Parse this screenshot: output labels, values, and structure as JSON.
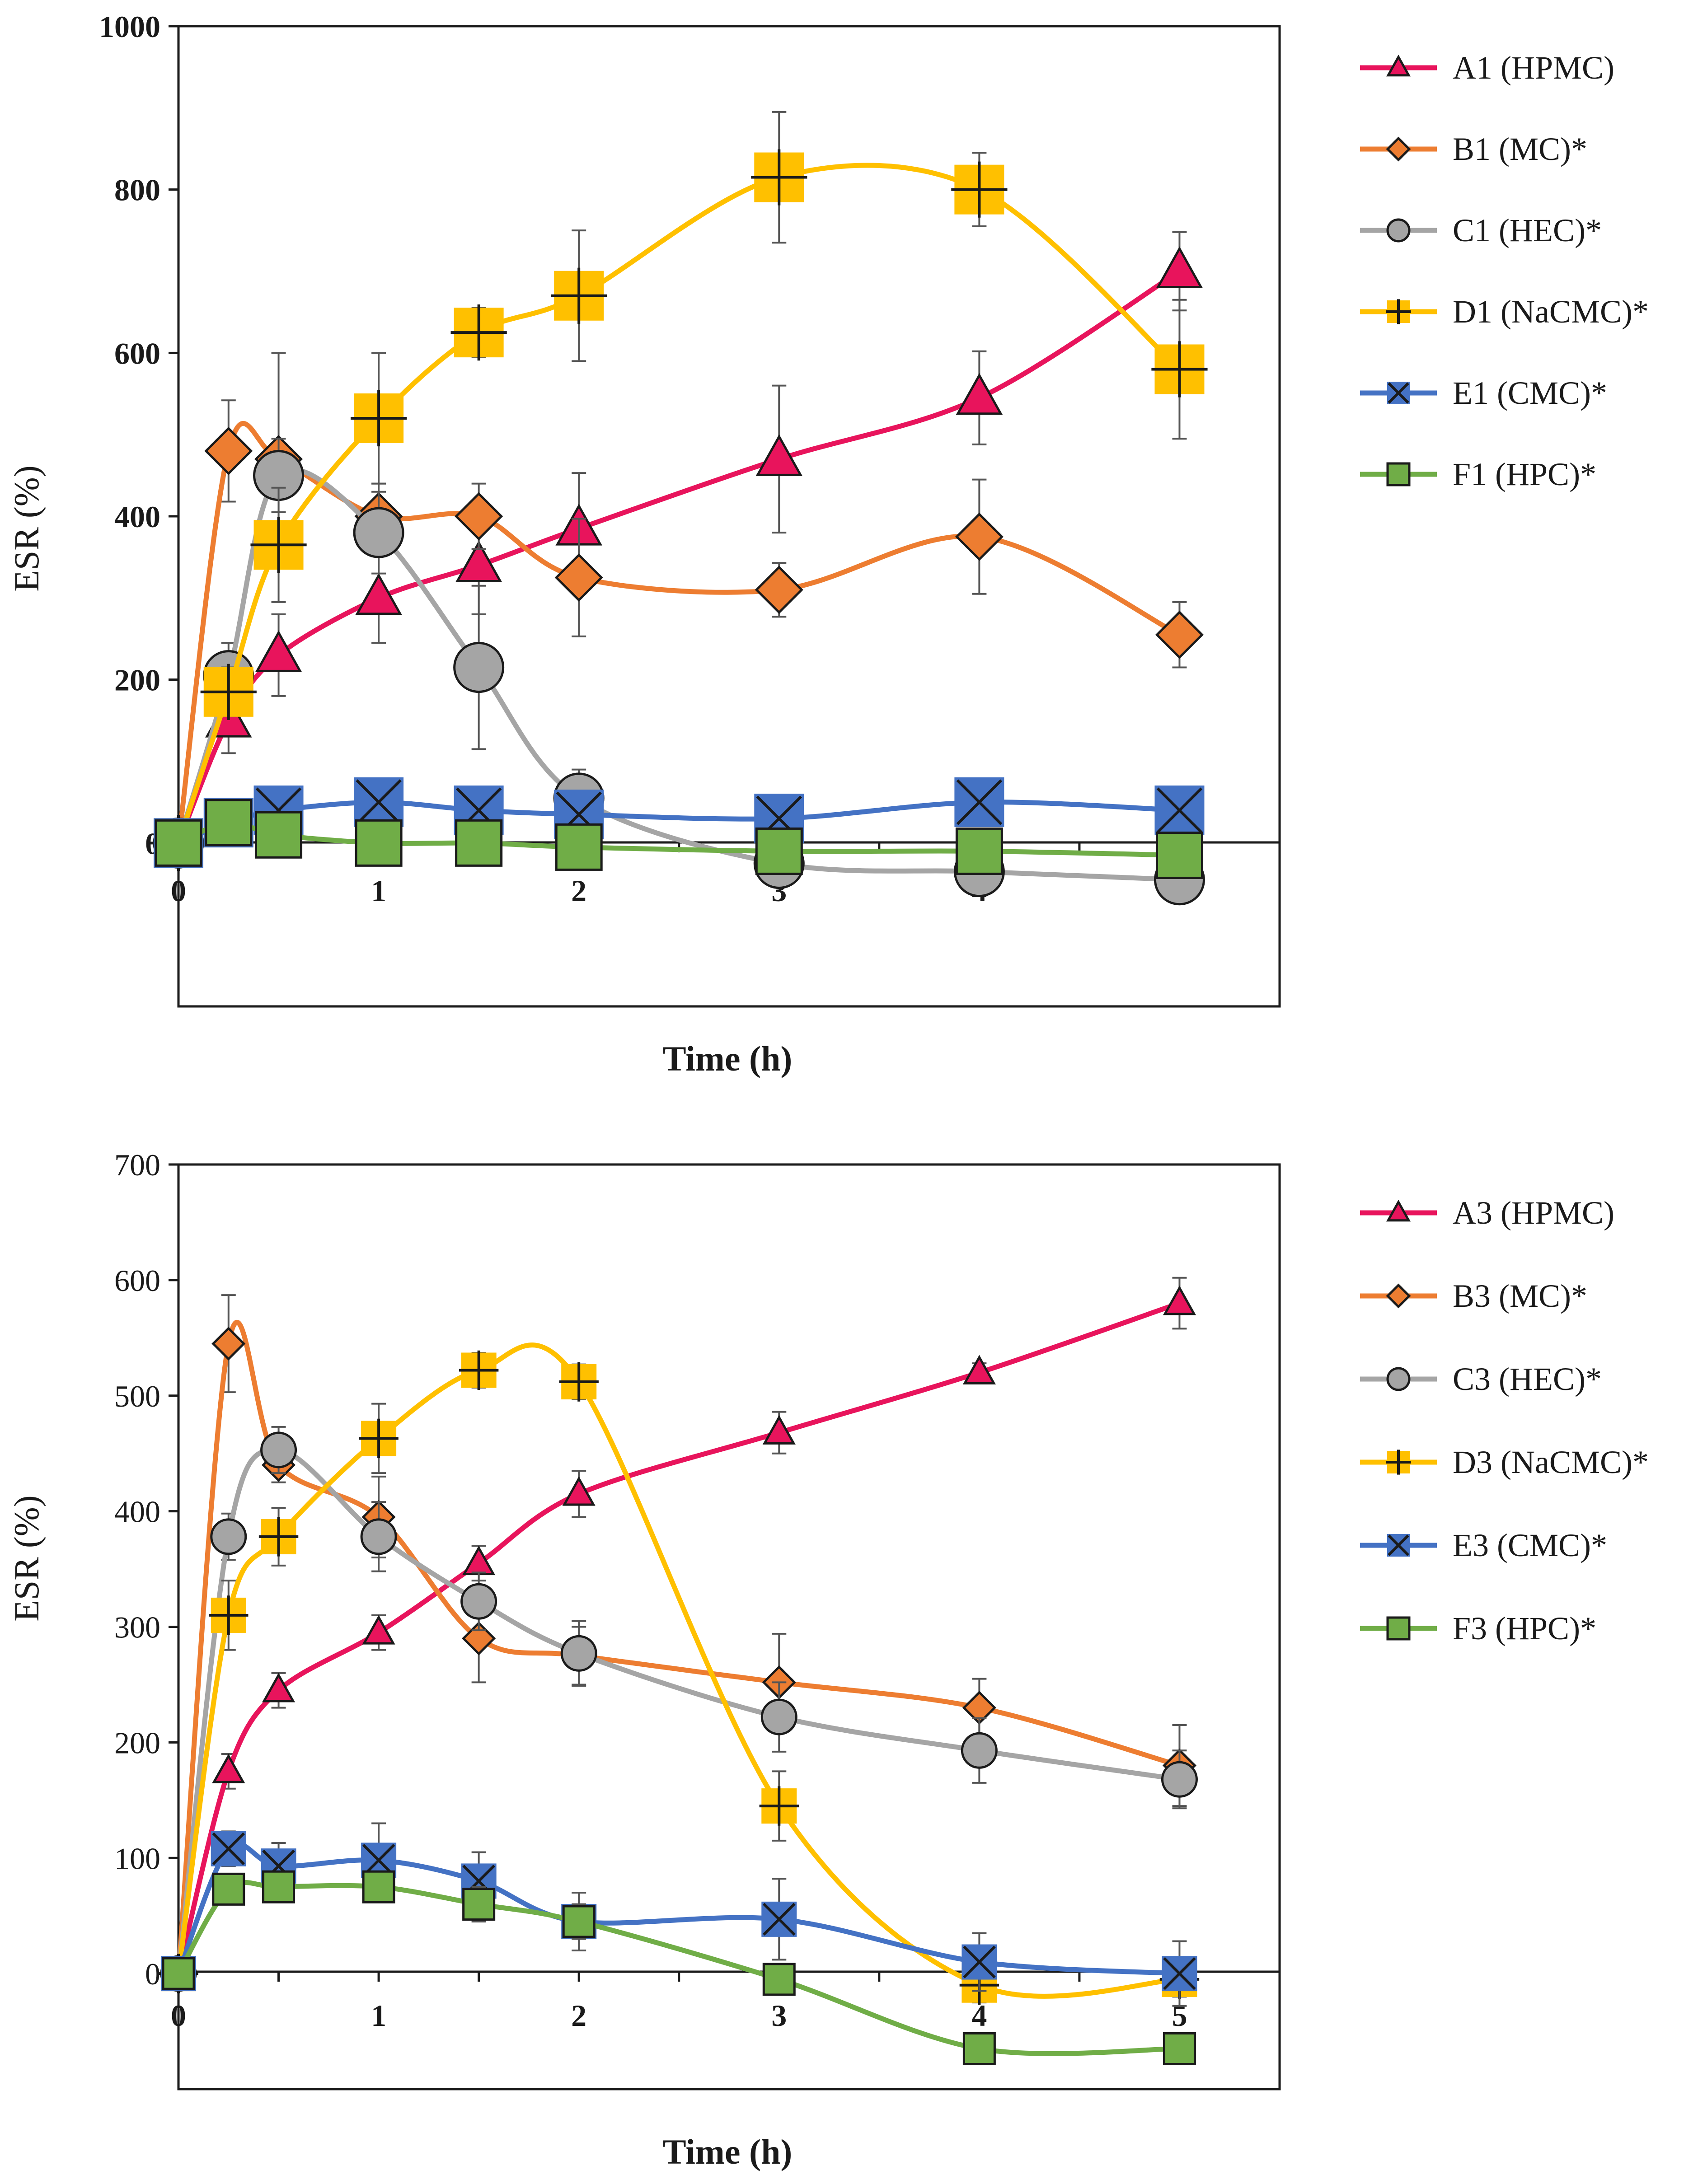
{
  "chart_data": [
    {
      "type": "line",
      "xlabel": "Time (h)",
      "ylabel": "ESR (%)",
      "ylim": [
        -200,
        1000
      ],
      "yticks": [
        0,
        200,
        400,
        600,
        800,
        1000
      ],
      "xticks": [
        0,
        1,
        2,
        3,
        4,
        5
      ],
      "x_tick_labels": [
        "0",
        "1",
        "2",
        "3",
        "4",
        "5"
      ],
      "y_tick_labels": [
        "0",
        "200",
        "400",
        "600",
        "800",
        "1000"
      ],
      "legend_position": "right",
      "series": [
        {
          "name": "A1 (HPMC)",
          "color": "#e8145c",
          "marker": "triangle",
          "x": [
            0,
            0.25,
            0.5,
            1,
            1.5,
            2,
            3,
            4,
            5
          ],
          "y": [
            0,
            150,
            230,
            300,
            340,
            385,
            470,
            545,
            700
          ],
          "err": [
            0,
            40,
            50,
            55,
            60,
            68,
            90,
            57,
            48
          ]
        },
        {
          "name": "B1 (MC)*",
          "color": "#ed7d31",
          "marker": "diamond",
          "x": [
            0,
            0.25,
            0.5,
            1,
            1.5,
            2,
            3,
            4,
            5
          ],
          "y": [
            0,
            480,
            470,
            400,
            400,
            325,
            310,
            375,
            255
          ],
          "err": [
            0,
            62,
            130,
            40,
            40,
            72,
            33,
            70,
            40
          ]
        },
        {
          "name": "C1 (HEC)*",
          "color": "#a5a5a5",
          "marker": "circle",
          "x": [
            0,
            0.25,
            0.5,
            1,
            1.5,
            2,
            3,
            4,
            5
          ],
          "y": [
            0,
            205,
            450,
            380,
            215,
            55,
            -25,
            -35,
            -45
          ],
          "err": [
            0,
            40,
            45,
            50,
            100,
            35,
            10,
            10,
            10
          ]
        },
        {
          "name": "D1 (NaCMC)*",
          "color": "#ffc000",
          "marker": "cross-square",
          "x": [
            0,
            0.25,
            0.5,
            1,
            1.5,
            2,
            3,
            4,
            5
          ],
          "y": [
            0,
            185,
            365,
            520,
            625,
            670,
            815,
            800,
            580
          ],
          "err": [
            0,
            30,
            70,
            80,
            30,
            80,
            80,
            45,
            85
          ]
        },
        {
          "name": "E1 (CMC)*",
          "color": "#4472c4",
          "marker": "x-square",
          "x": [
            0,
            0.25,
            0.5,
            1,
            1.5,
            2,
            3,
            4,
            5
          ],
          "y": [
            0,
            25,
            40,
            50,
            40,
            35,
            30,
            50,
            40
          ],
          "err": [
            0,
            10,
            15,
            15,
            15,
            15,
            12,
            12,
            12
          ]
        },
        {
          "name": "F1 (HPC)*",
          "color": "#70ad47",
          "marker": "square",
          "x": [
            0,
            0.25,
            0.5,
            1,
            1.5,
            2,
            3,
            4,
            5
          ],
          "y": [
            0,
            25,
            10,
            0,
            0,
            -5,
            -10,
            -10,
            -15
          ],
          "err": [
            0,
            8,
            8,
            8,
            8,
            8,
            8,
            8,
            8
          ]
        }
      ]
    },
    {
      "type": "line",
      "xlabel": "Time (h)",
      "ylabel": "ESR (%)",
      "ylim": [
        -100,
        700
      ],
      "yticks": [
        0,
        100,
        200,
        300,
        400,
        500,
        600,
        700
      ],
      "xticks": [
        0,
        1,
        2,
        3,
        4,
        5
      ],
      "x_tick_labels": [
        "0",
        "1",
        "2",
        "3",
        "4",
        "5"
      ],
      "y_tick_labels": [
        "0",
        "100",
        "200",
        "300",
        "400",
        "500",
        "600",
        "700"
      ],
      "legend_position": "right",
      "series": [
        {
          "name": "A3 (HPMC)",
          "color": "#e8145c",
          "marker": "triangle",
          "x": [
            0,
            0.25,
            0.5,
            1,
            1.5,
            2,
            3,
            4,
            5
          ],
          "y": [
            0,
            175,
            245,
            295,
            355,
            415,
            468,
            520,
            580
          ],
          "err": [
            0,
            15,
            15,
            15,
            15,
            20,
            18,
            8,
            22
          ]
        },
        {
          "name": "B3 (MC)*",
          "color": "#ed7d31",
          "marker": "diamond",
          "x": [
            0,
            0.25,
            0.5,
            1,
            1.5,
            2,
            3,
            4,
            5
          ],
          "y": [
            0,
            545,
            440,
            395,
            290,
            275,
            252,
            230,
            180
          ],
          "err": [
            0,
            42,
            15,
            35,
            38,
            25,
            42,
            25,
            35
          ]
        },
        {
          "name": "C3 (HEC)*",
          "color": "#a5a5a5",
          "marker": "circle",
          "x": [
            0,
            0.25,
            0.5,
            1,
            1.5,
            2,
            3,
            4,
            5
          ],
          "y": [
            0,
            378,
            453,
            378,
            322,
            277,
            222,
            193,
            168
          ],
          "err": [
            0,
            20,
            20,
            30,
            25,
            28,
            30,
            28,
            25
          ]
        },
        {
          "name": "D3 (NaCMC)*",
          "color": "#ffc000",
          "marker": "cross-square",
          "x": [
            0,
            0.25,
            0.5,
            1,
            1.5,
            2,
            3,
            4,
            5
          ],
          "y": [
            0,
            310,
            378,
            463,
            522,
            512,
            145,
            -10,
            -5
          ],
          "err": [
            0,
            30,
            25,
            30,
            15,
            15,
            30,
            15,
            15
          ]
        },
        {
          "name": "E3 (CMC)*",
          "color": "#4472c4",
          "marker": "x-square",
          "x": [
            0,
            0.25,
            0.5,
            1,
            1.5,
            2,
            3,
            4,
            5
          ],
          "y": [
            0,
            108,
            93,
            98,
            80,
            45,
            47,
            10,
            0
          ],
          "err": [
            0,
            15,
            20,
            32,
            25,
            25,
            35,
            25,
            28
          ]
        },
        {
          "name": "F3 (HPC)*",
          "color": "#70ad47",
          "marker": "square",
          "x": [
            0,
            0.25,
            0.5,
            1,
            1.5,
            2,
            3,
            4,
            5
          ],
          "y": [
            0,
            73,
            75,
            75,
            60,
            45,
            -5,
            -65,
            -65
          ],
          "err": [
            0,
            10,
            10,
            12,
            15,
            15,
            10,
            10,
            10
          ]
        }
      ]
    }
  ]
}
